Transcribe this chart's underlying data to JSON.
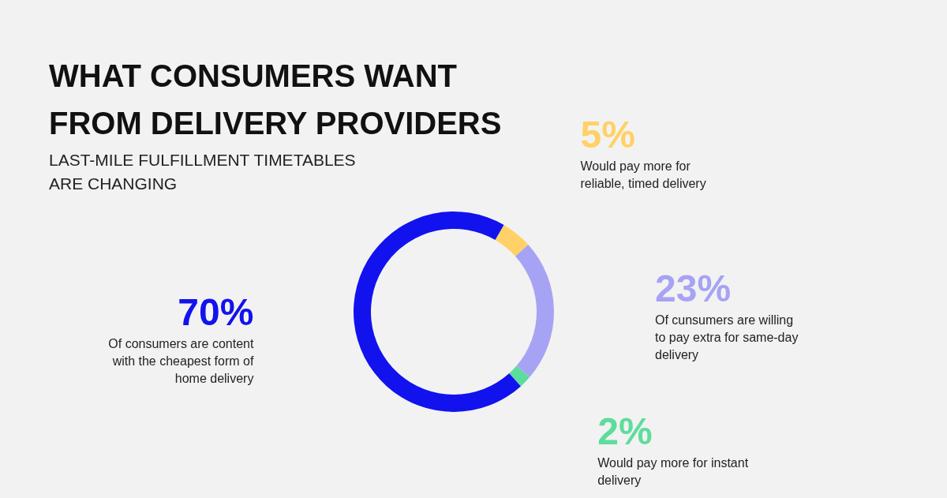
{
  "chart_data": {
    "type": "donut",
    "title": "WHAT CONSUMERS WANT FROM DELIVERY PROVIDERS",
    "subtitle": "LAST-MILE FULFILLMENT TIMETABLES ARE CHANGING",
    "categories": [
      "Would pay more for reliable, timed delivery",
      "Of cunsumers are willing to pay extra for same-day delivery",
      "Would pay more for instant delivery",
      "Of consumers are content with the cheapest form of home delivery"
    ],
    "values": [
      5,
      23,
      2,
      70
    ],
    "colors": [
      "#ffd166",
      "#a7a3f4",
      "#5ddd9c",
      "#1212ee"
    ],
    "value_labels": [
      "5%",
      "23%",
      "2%",
      "70%"
    ]
  }
}
